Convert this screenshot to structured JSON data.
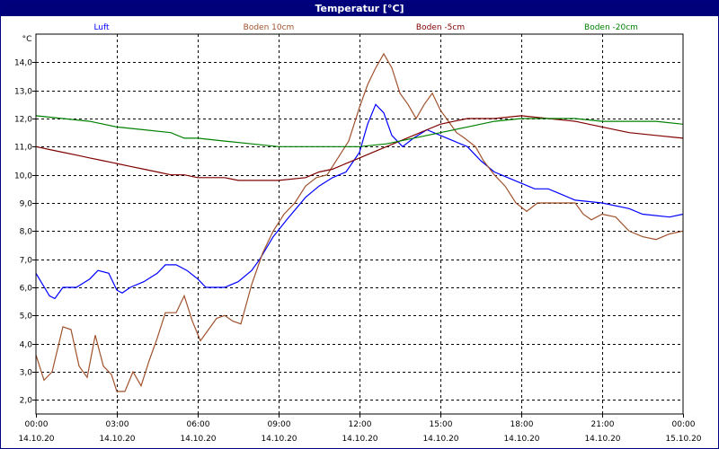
{
  "window": {
    "title": "Temperatur [°C]"
  },
  "chart_data": {
    "type": "line",
    "title": "Temperatur [°C]",
    "ylabel": "°C",
    "xlabel": "",
    "ylim": [
      1.5,
      15.0
    ],
    "xlim": [
      0,
      24
    ],
    "grid": true,
    "legend_position": "top",
    "y_ticks": [
      "2,0",
      "3,0",
      "4,0",
      "5,0",
      "6,0",
      "7,0",
      "8,0",
      "9,0",
      "10,0",
      "11,0",
      "12,0",
      "13,0",
      "14,0"
    ],
    "x_ticks": [
      {
        "time": "00:00",
        "date": "14.10.20"
      },
      {
        "time": "03:00",
        "date": "14.10.20"
      },
      {
        "time": "06:00",
        "date": "14.10.20"
      },
      {
        "time": "09:00",
        "date": "14.10.20"
      },
      {
        "time": "12:00",
        "date": "14.10.20"
      },
      {
        "time": "15:00",
        "date": "14.10.20"
      },
      {
        "time": "18:00",
        "date": "14.10.20"
      },
      {
        "time": "21:00",
        "date": "14.10.20"
      },
      {
        "time": "00:00",
        "date": "15.10.20"
      }
    ],
    "series": [
      {
        "name": "Luft",
        "color": "#0000ff",
        "points": [
          [
            0,
            6.5
          ],
          [
            0.5,
            5.7
          ],
          [
            0.7,
            5.6
          ],
          [
            1.0,
            6.0
          ],
          [
            1.5,
            6.0
          ],
          [
            2.0,
            6.3
          ],
          [
            2.3,
            6.6
          ],
          [
            2.7,
            6.5
          ],
          [
            3.0,
            5.9
          ],
          [
            3.2,
            5.8
          ],
          [
            3.5,
            6.0
          ],
          [
            4.0,
            6.2
          ],
          [
            4.5,
            6.5
          ],
          [
            4.8,
            6.8
          ],
          [
            5.2,
            6.8
          ],
          [
            5.6,
            6.6
          ],
          [
            6.0,
            6.3
          ],
          [
            6.3,
            6.0
          ],
          [
            7.0,
            6.0
          ],
          [
            7.5,
            6.2
          ],
          [
            8.0,
            6.6
          ],
          [
            8.3,
            7.0
          ],
          [
            8.8,
            7.8
          ],
          [
            9.3,
            8.4
          ],
          [
            10.0,
            9.2
          ],
          [
            10.5,
            9.6
          ],
          [
            11.0,
            9.9
          ],
          [
            11.5,
            10.1
          ],
          [
            12.0,
            10.8
          ],
          [
            12.3,
            11.8
          ],
          [
            12.6,
            12.5
          ],
          [
            12.9,
            12.2
          ],
          [
            13.2,
            11.4
          ],
          [
            13.6,
            11.0
          ],
          [
            14.0,
            11.3
          ],
          [
            14.5,
            11.6
          ],
          [
            15.0,
            11.4
          ],
          [
            15.5,
            11.2
          ],
          [
            16.0,
            11.0
          ],
          [
            16.5,
            10.5
          ],
          [
            17.0,
            10.1
          ],
          [
            17.5,
            9.9
          ],
          [
            18.0,
            9.7
          ],
          [
            18.5,
            9.5
          ],
          [
            19.0,
            9.5
          ],
          [
            19.5,
            9.3
          ],
          [
            20.0,
            9.1
          ],
          [
            21.0,
            9.0
          ],
          [
            22.0,
            8.8
          ],
          [
            22.5,
            8.6
          ],
          [
            23.5,
            8.5
          ],
          [
            24.0,
            8.6
          ]
        ]
      },
      {
        "name": "Boden 10cm",
        "color": "#a0522d",
        "points": [
          [
            0,
            3.6
          ],
          [
            0.3,
            2.7
          ],
          [
            0.6,
            3.0
          ],
          [
            1.0,
            4.6
          ],
          [
            1.3,
            4.5
          ],
          [
            1.6,
            3.2
          ],
          [
            1.9,
            2.8
          ],
          [
            2.2,
            4.3
          ],
          [
            2.5,
            3.2
          ],
          [
            2.8,
            2.9
          ],
          [
            3.0,
            2.3
          ],
          [
            3.3,
            2.3
          ],
          [
            3.6,
            3.0
          ],
          [
            3.9,
            2.5
          ],
          [
            4.2,
            3.4
          ],
          [
            4.5,
            4.2
          ],
          [
            4.8,
            5.1
          ],
          [
            5.2,
            5.1
          ],
          [
            5.5,
            5.7
          ],
          [
            5.8,
            4.8
          ],
          [
            6.1,
            4.1
          ],
          [
            6.4,
            4.5
          ],
          [
            6.7,
            4.9
          ],
          [
            7.0,
            5.0
          ],
          [
            7.3,
            4.8
          ],
          [
            7.6,
            4.7
          ],
          [
            8.0,
            6.1
          ],
          [
            8.4,
            7.2
          ],
          [
            8.8,
            8.0
          ],
          [
            9.2,
            8.6
          ],
          [
            9.6,
            9.0
          ],
          [
            10.0,
            9.6
          ],
          [
            10.4,
            9.9
          ],
          [
            10.8,
            10.0
          ],
          [
            11.2,
            10.6
          ],
          [
            11.6,
            11.2
          ],
          [
            12.0,
            12.4
          ],
          [
            12.3,
            13.2
          ],
          [
            12.6,
            13.8
          ],
          [
            12.9,
            14.3
          ],
          [
            13.2,
            13.8
          ],
          [
            13.5,
            12.9
          ],
          [
            13.8,
            12.5
          ],
          [
            14.1,
            12.0
          ],
          [
            14.4,
            12.5
          ],
          [
            14.7,
            12.9
          ],
          [
            15.0,
            12.3
          ],
          [
            15.3,
            11.9
          ],
          [
            15.6,
            11.5
          ],
          [
            15.9,
            11.3
          ],
          [
            16.3,
            11.0
          ],
          [
            16.6,
            10.5
          ],
          [
            17.0,
            10.0
          ],
          [
            17.4,
            9.6
          ],
          [
            17.8,
            9.0
          ],
          [
            18.2,
            8.7
          ],
          [
            18.6,
            9.0
          ],
          [
            19.0,
            9.0
          ],
          [
            19.5,
            9.0
          ],
          [
            20.0,
            9.0
          ],
          [
            20.3,
            8.6
          ],
          [
            20.6,
            8.4
          ],
          [
            21.0,
            8.6
          ],
          [
            21.5,
            8.5
          ],
          [
            22.0,
            8.0
          ],
          [
            22.5,
            7.8
          ],
          [
            23.0,
            7.7
          ],
          [
            23.5,
            7.9
          ],
          [
            24.0,
            8.0
          ]
        ]
      },
      {
        "name": "Boden -5cm",
        "color": "#800000",
        "points": [
          [
            0,
            11.0
          ],
          [
            0.5,
            10.9
          ],
          [
            1.0,
            10.8
          ],
          [
            1.5,
            10.7
          ],
          [
            2.0,
            10.6
          ],
          [
            2.5,
            10.5
          ],
          [
            3.0,
            10.4
          ],
          [
            3.5,
            10.3
          ],
          [
            4.0,
            10.2
          ],
          [
            4.5,
            10.1
          ],
          [
            5.0,
            10.0
          ],
          [
            5.5,
            10.0
          ],
          [
            6.0,
            9.9
          ],
          [
            7.0,
            9.9
          ],
          [
            7.5,
            9.8
          ],
          [
            8.0,
            9.8
          ],
          [
            9.0,
            9.8
          ],
          [
            10.0,
            9.9
          ],
          [
            10.5,
            10.1
          ],
          [
            11.0,
            10.2
          ],
          [
            11.5,
            10.4
          ],
          [
            12.0,
            10.6
          ],
          [
            12.5,
            10.8
          ],
          [
            13.0,
            11.0
          ],
          [
            13.5,
            11.2
          ],
          [
            14.0,
            11.4
          ],
          [
            14.5,
            11.6
          ],
          [
            15.0,
            11.8
          ],
          [
            15.5,
            11.9
          ],
          [
            16.0,
            12.0
          ],
          [
            17.0,
            12.0
          ],
          [
            18.0,
            12.1
          ],
          [
            19.0,
            12.0
          ],
          [
            20.0,
            11.9
          ],
          [
            21.0,
            11.7
          ],
          [
            22.0,
            11.5
          ],
          [
            23.0,
            11.4
          ],
          [
            24.0,
            11.3
          ]
        ]
      },
      {
        "name": "Boden -20cm",
        "color": "#008000",
        "points": [
          [
            0,
            12.1
          ],
          [
            1.0,
            12.0
          ],
          [
            2.0,
            11.9
          ],
          [
            3.0,
            11.7
          ],
          [
            4.0,
            11.6
          ],
          [
            5.0,
            11.5
          ],
          [
            5.5,
            11.3
          ],
          [
            6.0,
            11.3
          ],
          [
            7.0,
            11.2
          ],
          [
            8.0,
            11.1
          ],
          [
            9.0,
            11.0
          ],
          [
            10.0,
            11.0
          ],
          [
            11.0,
            11.0
          ],
          [
            12.0,
            11.0
          ],
          [
            13.0,
            11.1
          ],
          [
            14.0,
            11.3
          ],
          [
            15.0,
            11.5
          ],
          [
            16.0,
            11.7
          ],
          [
            17.0,
            11.9
          ],
          [
            18.0,
            12.0
          ],
          [
            19.0,
            12.0
          ],
          [
            20.0,
            12.0
          ],
          [
            21.0,
            11.9
          ],
          [
            22.0,
            11.9
          ],
          [
            23.0,
            11.9
          ],
          [
            24.0,
            11.8
          ]
        ]
      }
    ]
  }
}
